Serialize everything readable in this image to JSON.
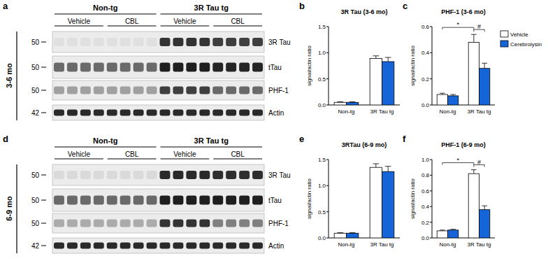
{
  "chart_data": [
    {
      "type": "bar",
      "panel_label": "b",
      "title": "3R Tau (3-6 mo)",
      "y_label": "signal/actin ratio",
      "categories": [
        "Non-tg",
        "3R Tau tg"
      ],
      "series": [
        {
          "name": "Vehicle",
          "color": "#ffffff",
          "values": [
            0.05,
            0.89
          ],
          "errors": [
            0.01,
            0.05
          ]
        },
        {
          "name": "Cerebrolysin",
          "color": "#1565d8",
          "values": [
            0.05,
            0.83
          ],
          "errors": [
            0.01,
            0.08
          ]
        }
      ],
      "ylim": [
        0,
        1.5
      ],
      "yticks": [
        {
          "value": 0,
          "label": "0.0"
        },
        0.5,
        {
          "value": 1,
          "label": "1.0"
        },
        1.5
      ]
    },
    {
      "type": "bar",
      "panel_label": "c",
      "title": "PHF-1 (3-6 mo)",
      "y_label": "signal/actin ratio",
      "categories": [
        "Non-tg",
        "3R Tau tg"
      ],
      "series": [
        {
          "name": "Vehicle",
          "color": "#ffffff",
          "values": [
            0.08,
            0.48
          ],
          "errors": [
            0.01,
            0.06
          ]
        },
        {
          "name": "Cerebrolysin",
          "color": "#1565d8",
          "values": [
            0.07,
            0.28
          ],
          "errors": [
            0.01,
            0.04
          ]
        }
      ],
      "ylim": [
        0,
        0.6
      ],
      "yticks": [
        {
          "value": 0,
          "label": "0.0"
        },
        0.2,
        0.4,
        0.6
      ],
      "legend": "right",
      "comparisons": [
        {
          "label": "*",
          "from": [
            0,
            0
          ],
          "to": [
            1,
            0
          ]
        },
        {
          "label": "#",
          "from": [
            1,
            0
          ],
          "to": [
            1,
            1
          ]
        }
      ]
    },
    {
      "type": "bar",
      "panel_label": "e",
      "title": "3RTau (6-9 mo)",
      "y_label": "signal/actin ratio",
      "categories": [
        "Non-tg",
        "3R Tau tg"
      ],
      "series": [
        {
          "name": "Vehicle",
          "color": "#ffffff",
          "values": [
            0.09,
            1.35
          ],
          "errors": [
            0.01,
            0.07
          ]
        },
        {
          "name": "Cerebrolysin",
          "color": "#1565d8",
          "values": [
            0.09,
            1.27
          ],
          "errors": [
            0.01,
            0.1
          ]
        }
      ],
      "ylim": [
        0,
        1.5
      ],
      "yticks": [
        {
          "value": 0,
          "label": "0.0"
        },
        0.5,
        {
          "value": 1,
          "label": "1.0"
        },
        1.5
      ]
    },
    {
      "type": "bar",
      "panel_label": "f",
      "title": "PHF-1 (6-9 mo)",
      "y_label": "signal/actin ratio",
      "categories": [
        "Non-tg",
        "3R Tau tg"
      ],
      "series": [
        {
          "name": "Vehicle",
          "color": "#ffffff",
          "values": [
            0.09,
            0.82
          ],
          "errors": [
            0.01,
            0.05
          ]
        },
        {
          "name": "Cerebrolysin",
          "color": "#1565d8",
          "values": [
            0.1,
            0.36
          ],
          "errors": [
            0.01,
            0.05
          ]
        }
      ],
      "ylim": [
        0,
        1
      ],
      "yticks": [
        {
          "value": 0,
          "label": "0.0"
        },
        0.2,
        0.4,
        0.6,
        0.8,
        {
          "value": 1,
          "label": "1.0"
        }
      ],
      "comparisons": [
        {
          "label": "*",
          "from": [
            0,
            0
          ],
          "to": [
            1,
            0
          ]
        },
        {
          "label": "#",
          "from": [
            1,
            0
          ],
          "to": [
            1,
            1
          ]
        }
      ]
    }
  ],
  "blots": [
    {
      "panel_label": "a",
      "age": "3-6 mo",
      "groups": [
        {
          "label": "Non-tg",
          "subgroups": [
            {
              "label": "Vehicle",
              "lanes": 4
            },
            {
              "label": "CBL",
              "lanes": 4
            }
          ]
        },
        {
          "label": "3R Tau tg",
          "subgroups": [
            {
              "label": "Vehicle",
              "lanes": 4
            },
            {
              "label": "CBL",
              "lanes": 4
            }
          ]
        }
      ],
      "rows": [
        {
          "label": "3R Tau",
          "mw": 50,
          "intensity": [
            0.05,
            0.05,
            0.85,
            0.8
          ]
        },
        {
          "label": "tTau",
          "mw": 50,
          "intensity": [
            0.6,
            0.6,
            0.95,
            0.92
          ]
        },
        {
          "label": "PHF-1",
          "mw": 50,
          "intensity": [
            0.35,
            0.35,
            0.8,
            0.6
          ]
        },
        {
          "label": "Actin",
          "mw": 42,
          "intensity": [
            0.9,
            0.9,
            0.9,
            0.9
          ]
        }
      ]
    },
    {
      "panel_label": "d",
      "age": "6-9 mo",
      "groups": [
        {
          "label": "Non-tg",
          "subgroups": [
            {
              "label": "Vehicle",
              "lanes": 4
            },
            {
              "label": "CBL",
              "lanes": 4
            }
          ]
        },
        {
          "label": "3R Tau tg",
          "subgroups": [
            {
              "label": "Vehicle",
              "lanes": 4
            },
            {
              "label": "CBL",
              "lanes": 4
            }
          ]
        }
      ],
      "rows": [
        {
          "label": "3R Tau",
          "mw": 50,
          "intensity": [
            0.08,
            0.08,
            0.9,
            0.88
          ]
        },
        {
          "label": "tTau",
          "mw": 50,
          "intensity": [
            0.6,
            0.6,
            0.95,
            0.95
          ]
        },
        {
          "label": "PHF-1",
          "mw": 50,
          "intensity": [
            0.3,
            0.3,
            0.85,
            0.5
          ]
        },
        {
          "label": "Actin",
          "mw": 42,
          "intensity": [
            0.9,
            0.9,
            0.9,
            0.9
          ]
        }
      ]
    }
  ]
}
